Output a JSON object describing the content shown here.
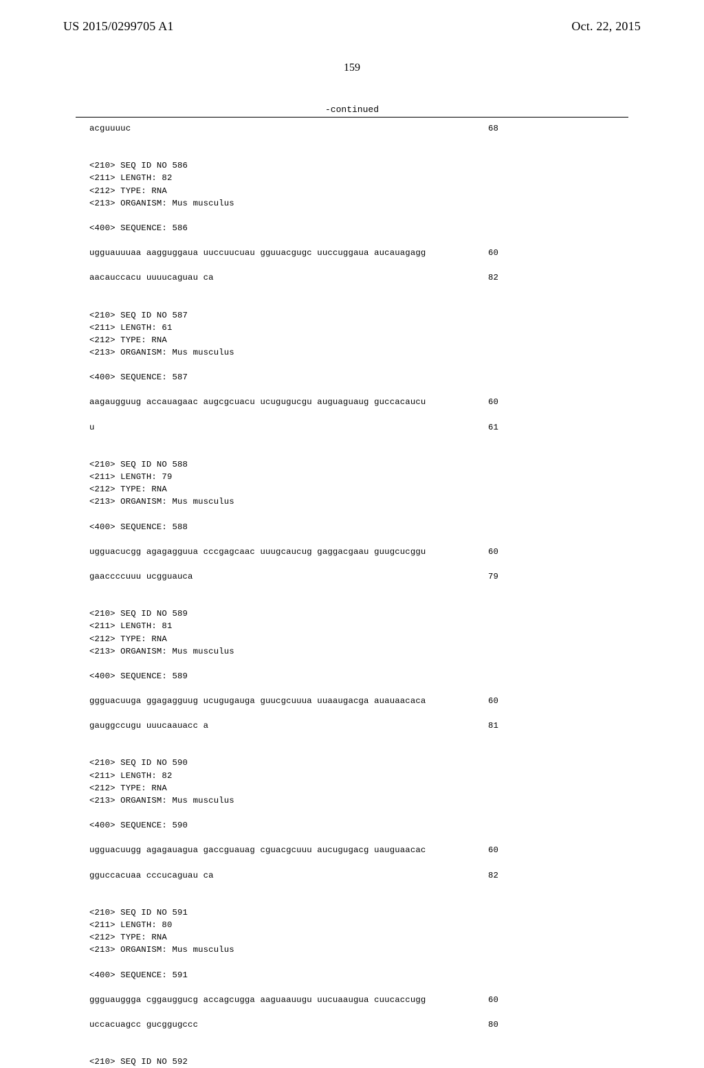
{
  "header": {
    "pubno": "US 2015/0299705 A1",
    "pubdate": "Oct. 22, 2015"
  },
  "pagenum": "159",
  "continued": "-continued",
  "lines": [
    {
      "t": "acguuuuc",
      "n": "68"
    },
    {
      "blank": 2
    },
    {
      "t": "<210> SEQ ID NO 586"
    },
    {
      "t": "<211> LENGTH: 82"
    },
    {
      "t": "<212> TYPE: RNA"
    },
    {
      "t": "<213> ORGANISM: Mus musculus"
    },
    {
      "blank": 1
    },
    {
      "t": "<400> SEQUENCE: 586"
    },
    {
      "blank": 1
    },
    {
      "t": "ugguauuuaa aagguggaua uuccuucuau gguuacgugc uuccuggaua aucauagagg",
      "n": "60"
    },
    {
      "blank": 1
    },
    {
      "t": "aacauccacu uuuucaguau ca",
      "n": "82"
    },
    {
      "blank": 2
    },
    {
      "t": "<210> SEQ ID NO 587"
    },
    {
      "t": "<211> LENGTH: 61"
    },
    {
      "t": "<212> TYPE: RNA"
    },
    {
      "t": "<213> ORGANISM: Mus musculus"
    },
    {
      "blank": 1
    },
    {
      "t": "<400> SEQUENCE: 587"
    },
    {
      "blank": 1
    },
    {
      "t": "aagaugguug accauagaac augcgcuacu ucugugucgu auguaguaug guccacaucu",
      "n": "60"
    },
    {
      "blank": 1
    },
    {
      "t": "u",
      "n": "61"
    },
    {
      "blank": 2
    },
    {
      "t": "<210> SEQ ID NO 588"
    },
    {
      "t": "<211> LENGTH: 79"
    },
    {
      "t": "<212> TYPE: RNA"
    },
    {
      "t": "<213> ORGANISM: Mus musculus"
    },
    {
      "blank": 1
    },
    {
      "t": "<400> SEQUENCE: 588"
    },
    {
      "blank": 1
    },
    {
      "t": "ugguacucgg agagagguua cccgagcaac uuugcaucug gaggacgaau guugcucggu",
      "n": "60"
    },
    {
      "blank": 1
    },
    {
      "t": "gaaccccuuu ucgguauca",
      "n": "79"
    },
    {
      "blank": 2
    },
    {
      "t": "<210> SEQ ID NO 589"
    },
    {
      "t": "<211> LENGTH: 81"
    },
    {
      "t": "<212> TYPE: RNA"
    },
    {
      "t": "<213> ORGANISM: Mus musculus"
    },
    {
      "blank": 1
    },
    {
      "t": "<400> SEQUENCE: 589"
    },
    {
      "blank": 1
    },
    {
      "t": "ggguacuuga ggagagguug ucugugauga guucgcuuua uuaaugacga auauaacaca",
      "n": "60"
    },
    {
      "blank": 1
    },
    {
      "t": "gauggccugu uuucaauacc a",
      "n": "81"
    },
    {
      "blank": 2
    },
    {
      "t": "<210> SEQ ID NO 590"
    },
    {
      "t": "<211> LENGTH: 82"
    },
    {
      "t": "<212> TYPE: RNA"
    },
    {
      "t": "<213> ORGANISM: Mus musculus"
    },
    {
      "blank": 1
    },
    {
      "t": "<400> SEQUENCE: 590"
    },
    {
      "blank": 1
    },
    {
      "t": "ugguacuugg agagauagua gaccguauag cguacgcuuu aucugugacg uauguaacac",
      "n": "60"
    },
    {
      "blank": 1
    },
    {
      "t": "gguccacuaa cccucaguau ca",
      "n": "82"
    },
    {
      "blank": 2
    },
    {
      "t": "<210> SEQ ID NO 591"
    },
    {
      "t": "<211> LENGTH: 80"
    },
    {
      "t": "<212> TYPE: RNA"
    },
    {
      "t": "<213> ORGANISM: Mus musculus"
    },
    {
      "blank": 1
    },
    {
      "t": "<400> SEQUENCE: 591"
    },
    {
      "blank": 1
    },
    {
      "t": "ggguauggga cggauggucg accagcugga aaguaauugu uucuaaugua cuucaccugg",
      "n": "60"
    },
    {
      "blank": 1
    },
    {
      "t": "uccacuagcc gucggugccc",
      "n": "80"
    },
    {
      "blank": 2
    },
    {
      "t": "<210> SEQ ID NO 592"
    }
  ]
}
